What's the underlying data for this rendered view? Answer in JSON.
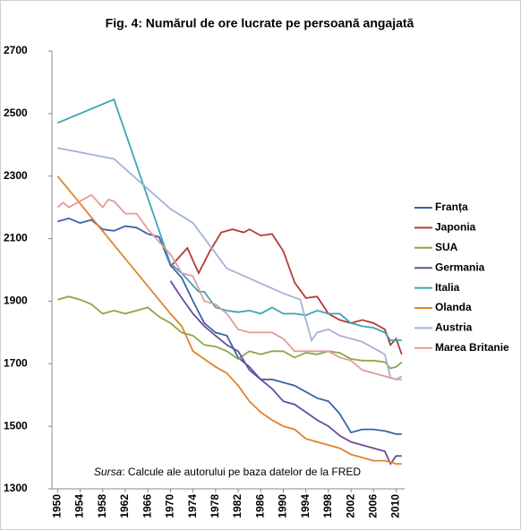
{
  "chart_data": {
    "type": "line",
    "title": "Fig. 4: Numărul de ore lucrate pe persoană angajată",
    "annotation": {
      "italic": "Sursa",
      "text": ": Calcule ale autorului pe baza datelor de la FRED"
    },
    "xlim": [
      1949,
      2011.5
    ],
    "xticks": [
      1950,
      1954,
      1958,
      1962,
      1966,
      1970,
      1974,
      1978,
      1982,
      1986,
      1990,
      1994,
      1998,
      2002,
      2006,
      2010
    ],
    "ylim": [
      1300,
      2700
    ],
    "yticks": [
      1300,
      1500,
      1700,
      1900,
      2100,
      2300,
      2500,
      2700
    ],
    "legend": "right",
    "series": [
      {
        "name": "Franța",
        "color": "#3a63a6",
        "x": [
          1950,
          1952,
          1954,
          1956,
          1958,
          1960,
          1962,
          1964,
          1966,
          1968,
          1970,
          1972,
          1974,
          1976,
          1978,
          1980,
          1982,
          1984,
          1986,
          1988,
          1990,
          1992,
          1994,
          1996,
          1998,
          2000,
          2002,
          2004,
          2006,
          2008,
          2010,
          2011
        ],
        "values": [
          2155,
          2165,
          2150,
          2160,
          2130,
          2125,
          2140,
          2135,
          2115,
          2105,
          2015,
          1975,
          1900,
          1830,
          1800,
          1790,
          1720,
          1690,
          1650,
          1650,
          1640,
          1630,
          1610,
          1590,
          1580,
          1540,
          1480,
          1490,
          1490,
          1485,
          1475,
          1475
        ]
      },
      {
        "name": "Japonia",
        "color": "#b53a36",
        "x": [
          1970,
          1972,
          1973,
          1975,
          1977,
          1979,
          1981,
          1983,
          1984,
          1986,
          1988,
          1990,
          1992,
          1994,
          1996,
          1998,
          2000,
          2002,
          2004,
          2006,
          2008,
          2009,
          2010,
          2011
        ],
        "values": [
          2010,
          2050,
          2070,
          1990,
          2060,
          2120,
          2130,
          2120,
          2130,
          2110,
          2115,
          2060,
          1960,
          1910,
          1915,
          1860,
          1840,
          1830,
          1840,
          1830,
          1810,
          1760,
          1780,
          1730
        ]
      },
      {
        "name": "SUA",
        "color": "#8aa846",
        "x": [
          1950,
          1952,
          1954,
          1956,
          1958,
          1960,
          1962,
          1964,
          1966,
          1968,
          1970,
          1972,
          1974,
          1976,
          1978,
          1980,
          1982,
          1984,
          1986,
          1988,
          1990,
          1992,
          1994,
          1996,
          1998,
          2000,
          2002,
          2004,
          2006,
          2008,
          2009,
          2010,
          2011
        ],
        "values": [
          1905,
          1915,
          1905,
          1890,
          1860,
          1870,
          1860,
          1870,
          1880,
          1850,
          1830,
          1800,
          1790,
          1760,
          1755,
          1740,
          1715,
          1740,
          1730,
          1740,
          1740,
          1720,
          1735,
          1730,
          1740,
          1735,
          1715,
          1710,
          1710,
          1705,
          1685,
          1690,
          1705
        ]
      },
      {
        "name": "Germania",
        "color": "#6a4c98",
        "x": [
          1970,
          1972,
          1974,
          1976,
          1978,
          1980,
          1982,
          1984,
          1986,
          1988,
          1990,
          1992,
          1994,
          1996,
          1998,
          2000,
          2002,
          2004,
          2006,
          2008,
          2009,
          2010,
          2011
        ],
        "values": [
          1965,
          1910,
          1860,
          1820,
          1790,
          1760,
          1740,
          1680,
          1650,
          1620,
          1580,
          1570,
          1545,
          1520,
          1500,
          1470,
          1450,
          1440,
          1430,
          1420,
          1380,
          1405,
          1405
        ]
      },
      {
        "name": "Italia",
        "color": "#3ca4b6",
        "x": [
          1950,
          1960,
          1970,
          1972,
          1974,
          1975,
          1976,
          1978,
          1980,
          1982,
          1984,
          1986,
          1988,
          1990,
          1992,
          1994,
          1996,
          1998,
          2000,
          2002,
          2004,
          2006,
          2008,
          2009,
          2010,
          2011
        ],
        "values": [
          2470,
          2545,
          2020,
          1990,
          1950,
          1930,
          1930,
          1880,
          1870,
          1865,
          1870,
          1860,
          1880,
          1860,
          1860,
          1855,
          1870,
          1860,
          1860,
          1830,
          1820,
          1815,
          1800,
          1775,
          1775,
          1775
        ]
      },
      {
        "name": "Olanda",
        "color": "#e0832e",
        "x": [
          1950,
          1970,
          1972,
          1974,
          1976,
          1978,
          1980,
          1982,
          1984,
          1986,
          1988,
          1990,
          1992,
          1994,
          1996,
          1998,
          2000,
          2002,
          2004,
          2006,
          2008,
          2010,
          2011
        ],
        "values": [
          2300,
          1860,
          1820,
          1740,
          1715,
          1690,
          1670,
          1630,
          1580,
          1545,
          1520,
          1500,
          1490,
          1460,
          1450,
          1440,
          1430,
          1410,
          1400,
          1390,
          1390,
          1380,
          1380
        ]
      },
      {
        "name": "Austria",
        "color": "#a2b2d8",
        "x": [
          1950,
          1960,
          1970,
          1974,
          1980,
          1990,
          1993,
          1995,
          1996,
          1998,
          2000,
          2002,
          2004,
          2006,
          2008,
          2009,
          2010,
          2011
        ],
        "values": [
          2390,
          2355,
          2195,
          2150,
          2005,
          1925,
          1905,
          1775,
          1800,
          1810,
          1790,
          1780,
          1770,
          1750,
          1730,
          1655,
          1650,
          1660
        ]
      },
      {
        "name": "Marea Britanie",
        "color": "#e29b9b",
        "x": [
          1950,
          1951,
          1952,
          1954,
          1956,
          1958,
          1959,
          1960,
          1962,
          1964,
          1966,
          1968,
          1970,
          1972,
          1974,
          1976,
          1978,
          1980,
          1982,
          1984,
          1986,
          1988,
          1990,
          1992,
          1994,
          1996,
          1998,
          2000,
          2002,
          2004,
          2006,
          2008,
          2010,
          2011
        ],
        "values": [
          2200,
          2215,
          2200,
          2220,
          2240,
          2200,
          2225,
          2220,
          2180,
          2180,
          2130,
          2090,
          2050,
          1990,
          1980,
          1900,
          1890,
          1860,
          1810,
          1800,
          1800,
          1800,
          1780,
          1740,
          1740,
          1740,
          1740,
          1720,
          1710,
          1680,
          1670,
          1660,
          1650,
          1650
        ]
      }
    ]
  }
}
